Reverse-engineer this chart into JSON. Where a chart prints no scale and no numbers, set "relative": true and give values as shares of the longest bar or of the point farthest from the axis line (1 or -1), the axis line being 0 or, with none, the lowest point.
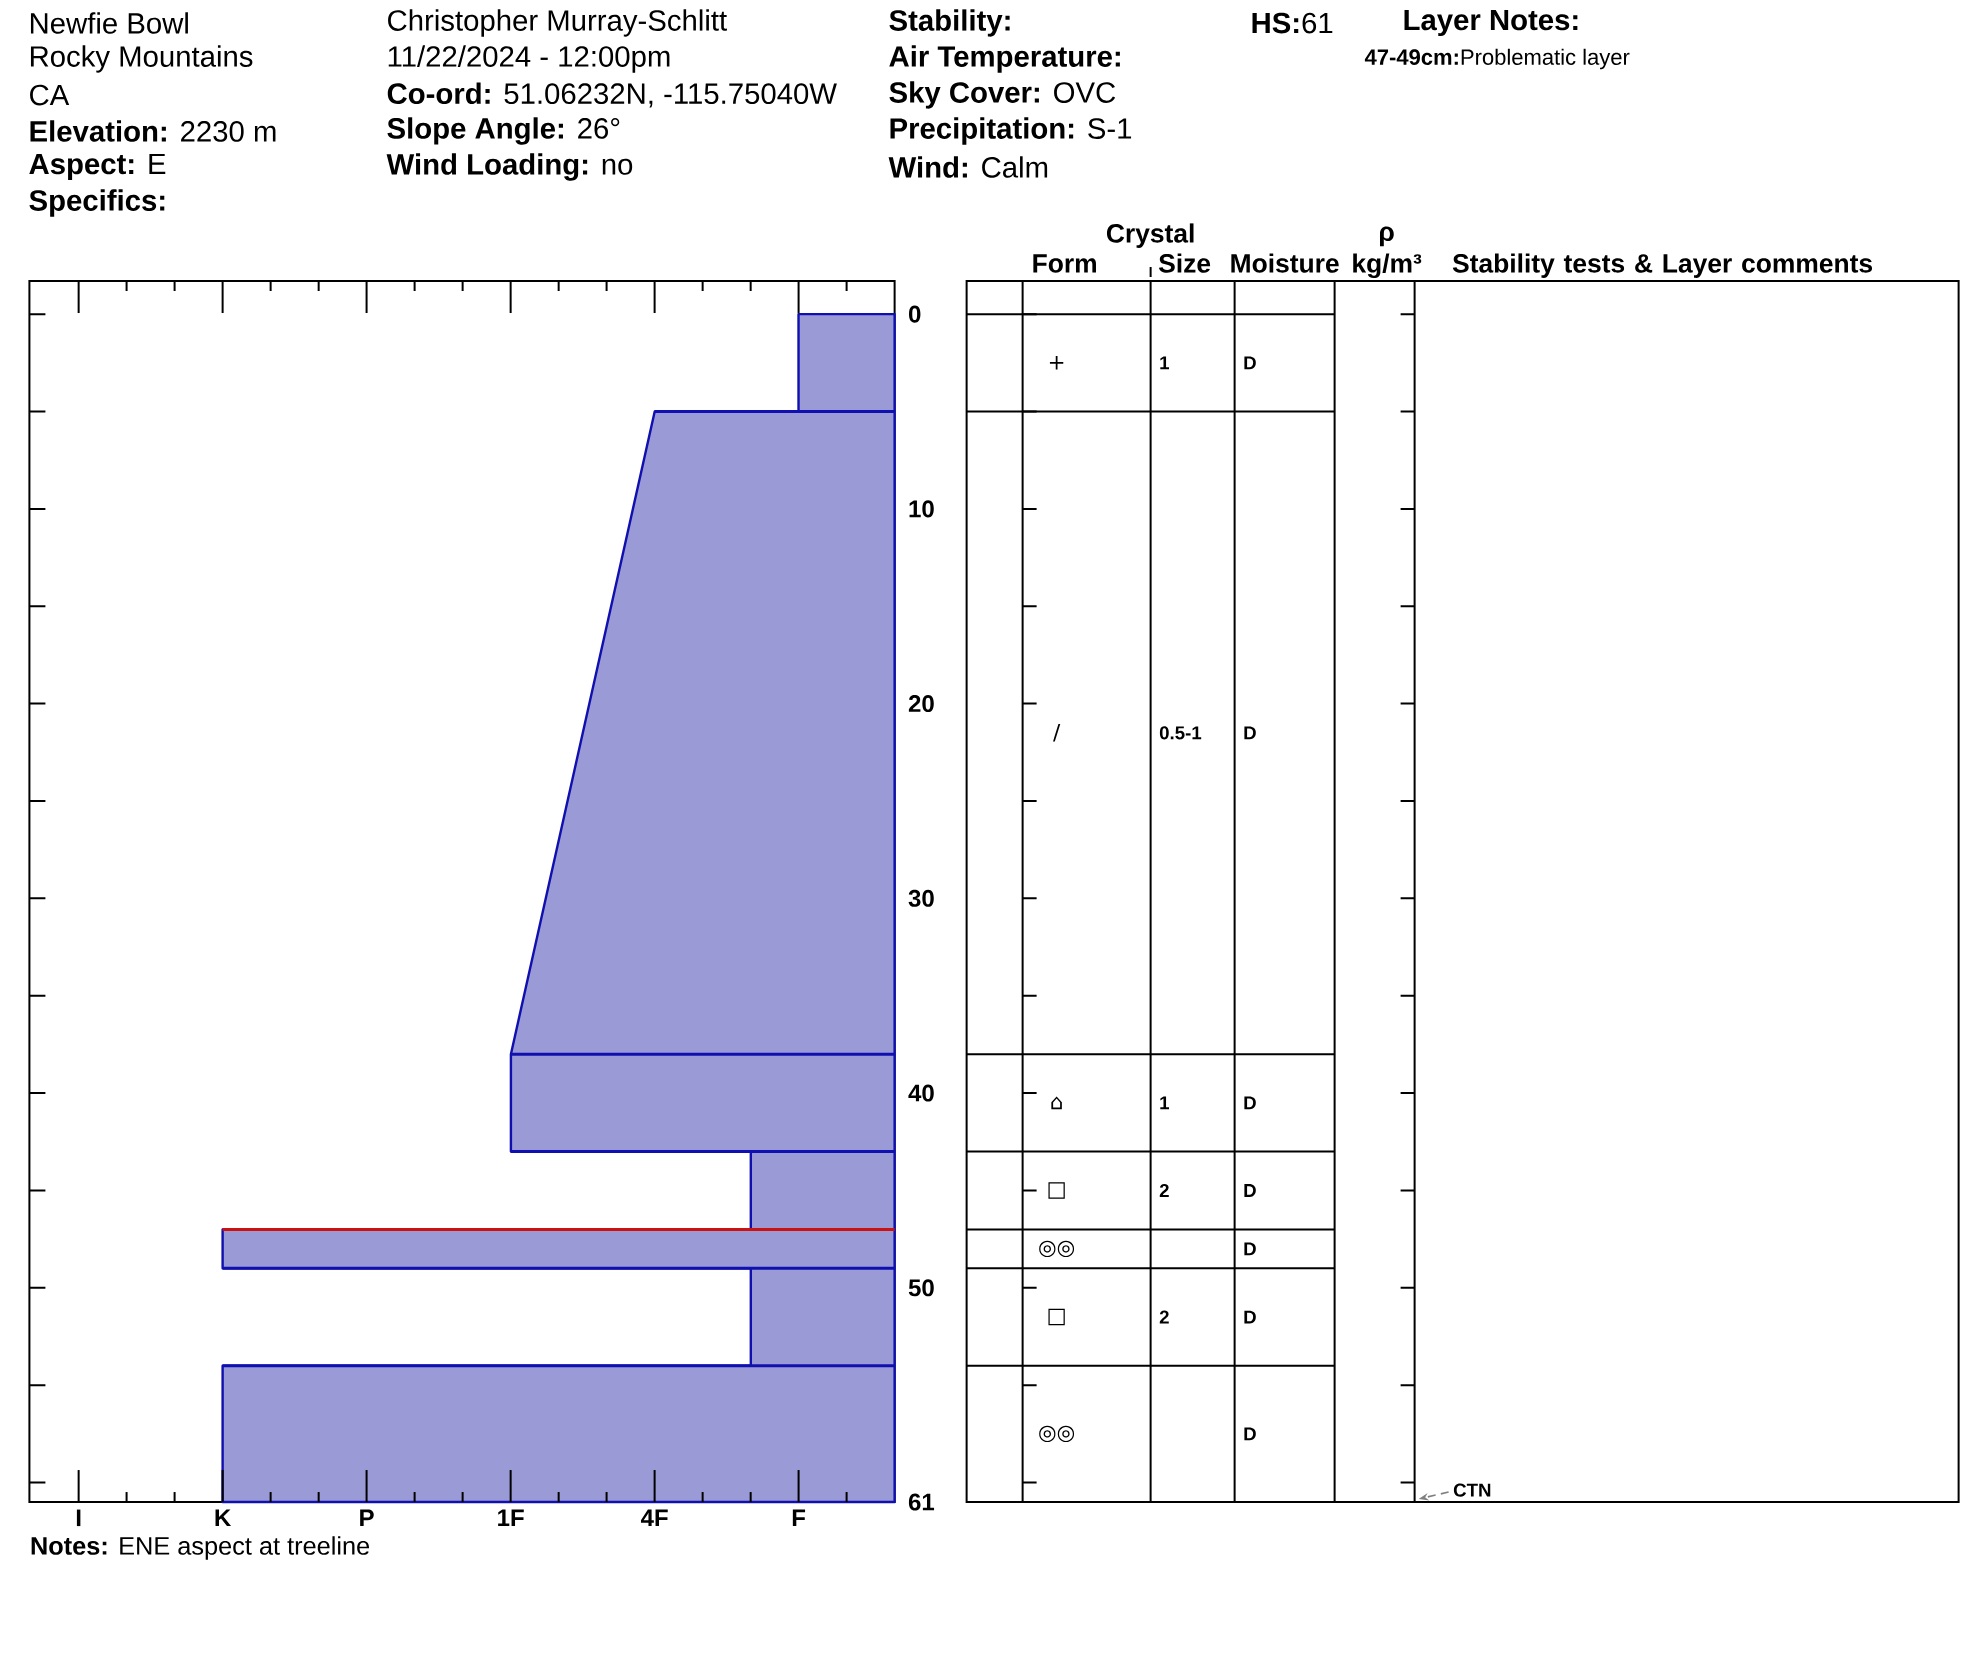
{
  "chart_data": [
    {
      "type": "other",
      "annotations": [
        "Newfie Bowl",
        "Rocky Mountains",
        "CA",
        "**Elevation:** 2230 m",
        "**Aspect:** E",
        "**Specifics:**",
        "Christopher Murray-Schlitt",
        "11/22/2024 - 12:00pm",
        "**Co-ord:** 51.06232N, -115.75040W",
        "**Slope Angle:** 26°",
        "**Wind Loading:** no",
        "**Stability:**",
        "**Air Temperature:**",
        "**Sky Cover:** OVC",
        "**Precipitation:** S-1",
        "**Wind:** Calm",
        "**HS:**61",
        "**Layer Notes:**",
        "**47-49cm:**Problematic layer"
      ]
    },
    {
      "type": "area",
      "orientation": "horizontal",
      "relative": true,
      "ylim": [
        61,
        -1.7
      ],
      "yticks": [
        0,
        {
          "value": 5,
          "label": null
        },
        10,
        {
          "value": 15,
          "label": null
        },
        20,
        {
          "value": 25,
          "label": null
        },
        30,
        {
          "value": 35,
          "label": null
        },
        40,
        {
          "value": 45,
          "label": null
        },
        50,
        {
          "value": 55,
          "label": null
        },
        {
          "value": 60,
          "label": null
        },
        61
      ],
      "series": [
        {
          "color": "#9a9ad6",
          "x": [
            0,
            5,
            5,
            38,
            43,
            43,
            47,
            47,
            49,
            49,
            54,
            54,
            61
          ],
          "values": [
            -0.143,
            -0.143,
            -0.357,
            -0.571,
            -0.571,
            -0.214,
            -0.214,
            -1,
            -1,
            -0.214,
            -0.214,
            -1,
            -1
          ]
        }
      ],
      "ref_lines": [
        {
          "axis": "y",
          "value": 5,
          "color": "#1010b0"
        },
        {
          "axis": "y",
          "value": 38,
          "color": "#1010b0"
        },
        {
          "axis": "y",
          "value": 43,
          "color": "#1010b0"
        },
        {
          "axis": "y",
          "value": 47,
          "color": "#cc1111"
        },
        {
          "axis": "y",
          "value": 49,
          "color": "#1010b0"
        },
        {
          "axis": "y",
          "value": 54,
          "color": "#1010b0"
        }
      ],
      "annotations": [
        "I",
        "K",
        "P",
        "1F",
        "4F",
        "F",
        "**Notes:** ENE aspect at treeline"
      ]
    },
    {
      "type": "other",
      "categories": [
        "Form",
        "Size",
        "Moisture",
        "ρ kg/m³",
        "Stability tests & Layer comments"
      ],
      "cell_labels": [
        [
          "+",
          "1",
          "D",
          null,
          null
        ],
        [
          "/",
          "0.5-1",
          "D",
          null,
          null
        ],
        [
          "⌂",
          "1",
          "D",
          null,
          null
        ],
        [
          "□",
          "2",
          "D",
          null,
          null
        ],
        [
          "◎◎",
          null,
          "D",
          null,
          null
        ],
        [
          "□",
          "2",
          "D",
          null,
          null
        ],
        [
          "◎◎",
          null,
          "D",
          null,
          null
        ]
      ],
      "annotations": [
        "Crystal",
        "CTN"
      ]
    }
  ]
}
